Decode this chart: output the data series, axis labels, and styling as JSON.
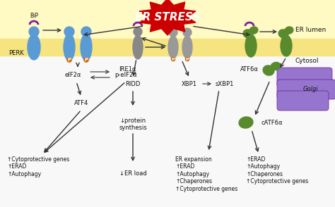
{
  "fig_w": 4.74,
  "fig_h": 2.94,
  "er_stress_text": "ER STRESS",
  "er_lumen_label": "ER lumen",
  "cytosol_label": "Cytosol",
  "perk_label": "PERK",
  "bip_label": "BiP",
  "ire1a_label": "IRE1α",
  "atf6a_label": "ATF6α",
  "eif2a_label": "eIF2α",
  "peif2a_label": "p-eIF2α",
  "ridd_label": "RIDD",
  "atf4_label": "ATF4",
  "xbp1_label": "XBP1",
  "sxbp1_label": "sXBP1",
  "catf6a_label": "cATF6α",
  "golgi_label": "Golgi",
  "protein_synth_label": "↓protein\nsynthesis",
  "er_load_label": "↓ER load",
  "outcomes_left": "↑Cytoprotective genes\n↑ERAD\n↑Autophagy",
  "outcomes_mid": "ER expansion\n↑ERAD\n↑Autophagy\n↑Chaperones\n↑Cytoprotective genes",
  "outcomes_right": "↑ERAD\n↑Autophagy\n↑Chaperones\n↑Cytoprotective genes",
  "blue": "#5b9bd5",
  "dark_gray": "#888888",
  "light_gray": "#aaaaaa",
  "green": "#5a8a2e",
  "purple_bip": "#7b1fa2",
  "golgi_purple": "#9575cd",
  "golgi_edge": "#6a1b9a",
  "red_stress": "#cc0000",
  "orange_p": "#cc6600",
  "arrow_col": "#333333",
  "text_col": "#111111",
  "mem_color": "#f5e480",
  "lumen_color": "#fff9c4",
  "fs": 6.0
}
